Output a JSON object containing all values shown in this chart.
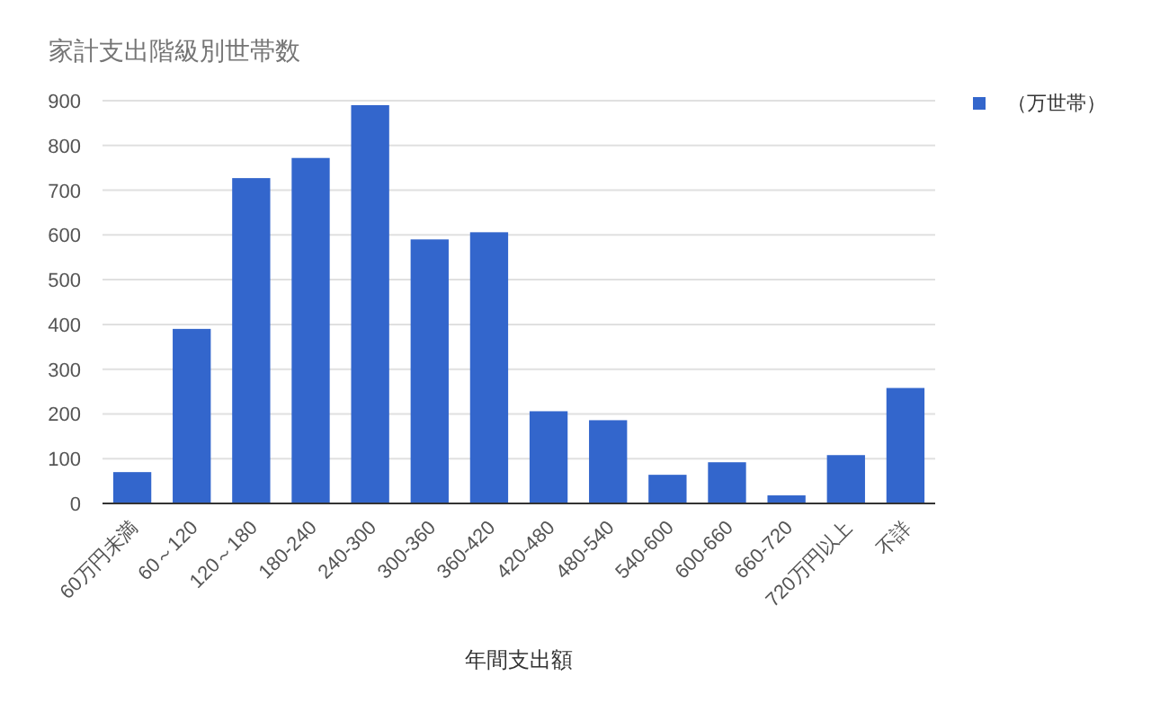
{
  "chart_data": {
    "type": "bar",
    "title": "家計支出階級別世帯数",
    "xlabel": "年間支出額",
    "categories": [
      "60万円未満",
      "60～120",
      "120～180",
      "180-240",
      "240-300",
      "300-360",
      "360-420",
      "420-480",
      "480-540",
      "540-600",
      "600-660",
      "660-720",
      "720万円以上",
      "不詳"
    ],
    "series": [
      {
        "name": "（万世帯）",
        "color": "#3366cc",
        "values": [
          70,
          390,
          727,
          772,
          890,
          590,
          606,
          206,
          186,
          64,
          92,
          18,
          108,
          258
        ]
      }
    ],
    "ylim": [
      0,
      900
    ],
    "yticks": [
      0,
      100,
      200,
      300,
      400,
      500,
      600,
      700,
      800,
      900
    ],
    "grid": "y",
    "legend": "top right"
  }
}
